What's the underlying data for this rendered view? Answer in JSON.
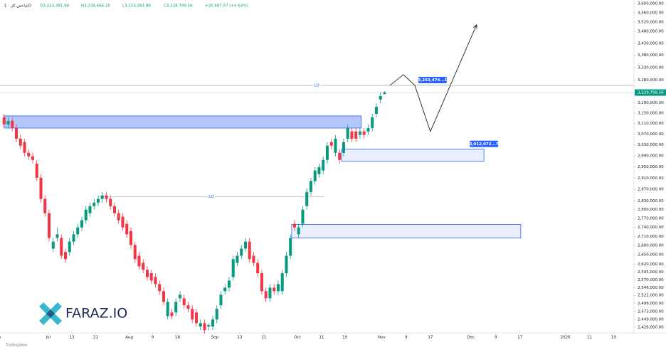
{
  "chart_data": {
    "type": "candlestick",
    "header": {
      "symbol": "شاخص کل · 1D",
      "open": "O3,223,391.98",
      "high": "H3,234,666.25",
      "low": "L3,223,391.98",
      "close": "C3,229,799.56",
      "change": "+20,487.57 (+0.64%)"
    },
    "up_color": "#089981",
    "down_color": "#f23645",
    "open": [
      3134000,
      3107000,
      3120000,
      3093000,
      3053000,
      3040000,
      3001000,
      2988000,
      2962000,
      2911000,
      2837000,
      2788000,
      2670000,
      2705000,
      2705000,
      2659000,
      2659000,
      2693000,
      2717000,
      2740000,
      2764000,
      2788000,
      2812000,
      2824000,
      2837000,
      2849000,
      2837000,
      2812000,
      2788000,
      2776000,
      2752000,
      2728000,
      2682000,
      2647000,
      2624000,
      2602000,
      2591000,
      2579000,
      2557000,
      2535000,
      2459000,
      2470000,
      2470000,
      2513000,
      2513000,
      2492000,
      2481000,
      2470000,
      2428000,
      2438000,
      2428000,
      2428000,
      2449000,
      2492000,
      2535000,
      2546000,
      2579000,
      2624000,
      2647000,
      2670000,
      2693000,
      2647000,
      2624000,
      2591000,
      2535000,
      2513000,
      2546000,
      2535000,
      2535000,
      2591000,
      2647000,
      2752000,
      2717000,
      2752000,
      2812000,
      2861000,
      2899000,
      2924000,
      2937000,
      2975000,
      3040000,
      3001000,
      3001000,
      3001000,
      3053000,
      3080000,
      3080000,
      3067000,
      3080000,
      3080000,
      3093000,
      3147000,
      3202000,
      3223391.98
    ],
    "high": [
      3147000,
      3134000,
      3134000,
      3107000,
      3067000,
      3053000,
      3014000,
      3001000,
      2975000,
      2924000,
      2849000,
      2800000,
      2705000,
      2740000,
      2717000,
      2670000,
      2705000,
      2728000,
      2752000,
      2776000,
      2812000,
      2824000,
      2837000,
      2849000,
      2861000,
      2861000,
      2849000,
      2824000,
      2800000,
      2788000,
      2764000,
      2740000,
      2693000,
      2659000,
      2636000,
      2613000,
      2602000,
      2591000,
      2568000,
      2546000,
      2513000,
      2481000,
      2513000,
      2535000,
      2524000,
      2502000,
      2492000,
      2481000,
      2449000,
      2449000,
      2438000,
      2459000,
      2492000,
      2535000,
      2557000,
      2579000,
      2647000,
      2659000,
      2682000,
      2705000,
      2705000,
      2659000,
      2636000,
      2602000,
      2546000,
      2557000,
      2557000,
      2568000,
      2602000,
      2659000,
      2717000,
      2764000,
      2752000,
      2812000,
      2874000,
      2911000,
      2949000,
      2962000,
      2988000,
      3040000,
      3053000,
      3067000,
      3014000,
      3053000,
      3107000,
      3093000,
      3093000,
      3093000,
      3093000,
      3107000,
      3147000,
      3188000,
      3230000,
      3234666.25
    ],
    "low": [
      3093000,
      3093000,
      3080000,
      3040000,
      3014000,
      2988000,
      2975000,
      2962000,
      2899000,
      2824000,
      2776000,
      2693000,
      2659000,
      2693000,
      2636000,
      2624000,
      2647000,
      2682000,
      2705000,
      2728000,
      2752000,
      2776000,
      2800000,
      2812000,
      2824000,
      2824000,
      2800000,
      2776000,
      2752000,
      2728000,
      2705000,
      2670000,
      2624000,
      2602000,
      2591000,
      2568000,
      2557000,
      2546000,
      2524000,
      2492000,
      2449000,
      2449000,
      2459000,
      2502000,
      2481000,
      2470000,
      2438000,
      2428000,
      2417000,
      2407000,
      2417000,
      2417000,
      2438000,
      2481000,
      2524000,
      2535000,
      2568000,
      2613000,
      2636000,
      2659000,
      2624000,
      2613000,
      2579000,
      2524000,
      2502000,
      2502000,
      2524000,
      2524000,
      2524000,
      2579000,
      2636000,
      2728000,
      2705000,
      2740000,
      2800000,
      2849000,
      2886000,
      2911000,
      2924000,
      2962000,
      3014000,
      2988000,
      2962000,
      2988000,
      3040000,
      3040000,
      3040000,
      3053000,
      3053000,
      3067000,
      3080000,
      3134000,
      3188000,
      3223391.98
    ],
    "close": [
      3107000,
      3120000,
      3093000,
      3053000,
      3027000,
      3001000,
      2988000,
      2975000,
      2911000,
      2837000,
      2788000,
      2705000,
      2693000,
      2717000,
      2647000,
      2636000,
      2693000,
      2717000,
      2740000,
      2764000,
      2800000,
      2812000,
      2824000,
      2837000,
      2849000,
      2837000,
      2812000,
      2788000,
      2764000,
      2740000,
      2717000,
      2682000,
      2636000,
      2613000,
      2602000,
      2579000,
      2568000,
      2557000,
      2535000,
      2502000,
      2502000,
      2459000,
      2502000,
      2524000,
      2492000,
      2481000,
      2449000,
      2438000,
      2438000,
      2417000,
      2432000,
      2449000,
      2481000,
      2524000,
      2546000,
      2568000,
      2636000,
      2647000,
      2670000,
      2693000,
      2636000,
      2624000,
      2591000,
      2535000,
      2513000,
      2546000,
      2535000,
      2557000,
      2591000,
      2647000,
      2705000,
      2740000,
      2740000,
      2800000,
      2861000,
      2899000,
      2937000,
      2949000,
      2975000,
      3027000,
      3027000,
      3053000,
      2975000,
      3040000,
      3093000,
      3053000,
      3053000,
      3080000,
      3067000,
      3093000,
      3134000,
      3174000,
      3216000,
      3229799.56
    ],
    "last_price": {
      "value": 3229799.56,
      "label": "3,229,799.56"
    },
    "zones": [
      {
        "start": 0,
        "end": 87.3,
        "top": 3139000,
        "bottom": 3093000,
        "color": "#2962ff"
      },
      {
        "start": 82.5,
        "end": 117.3,
        "top": 3014000,
        "bottom": 2970000,
        "color": "#2962ff",
        "label": "3,012,072...7"
      },
      {
        "start": 70.3,
        "end": 126.3,
        "top": 2750000,
        "bottom": 2705000,
        "color": "#2962ff"
      }
    ],
    "levels": [
      {
        "label": "LQ",
        "value": 3258000,
        "start": -1,
        "end": 153.8
      },
      {
        "label": "LQ",
        "value": 2844000,
        "start": 23,
        "end": 78.3
      }
    ],
    "projection": {
      "x": [
        94.3,
        97.6,
        100.4,
        104.2,
        115.5
      ],
      "values": [
        3258000,
        3301000,
        3258000,
        3080000,
        3508000
      ],
      "label": "3,253,474...1",
      "color": "#222222"
    },
    "log_scale": true,
    "xlim": [
      -1,
      153.8
    ],
    "ylim": [
      2400000,
      3620000
    ],
    "xticks": [
      {
        "value": -1.5,
        "label": "Jun"
      },
      {
        "value": 10.8,
        "label": "Jul"
      },
      16.6,
      22.4,
      {
        "value": 30.6,
        "label": "Aug"
      },
      36.3,
      42.4,
      {
        "value": 51.5,
        "label": "Sep"
      },
      57.6,
      63.5,
      {
        "value": 71.7,
        "label": "Oct"
      },
      77.6,
      83.3,
      {
        "value": 92.3,
        "label": "Nov"
      },
      98.3,
      104.2,
      {
        "value": 114.1,
        "label": "Dec"
      },
      120.2,
      126.1,
      {
        "value": 137.2,
        "label": "2026"
      },
      143.1,
      149
    ],
    "xtick_labels": [
      null,
      null,
      "13",
      "21",
      null,
      "9",
      "18",
      null,
      "13",
      "21",
      null,
      "11",
      "19",
      null,
      "9",
      "17",
      null,
      "9",
      "17",
      null,
      "11",
      "19"
    ],
    "yticks": [
      {
        "value": 3600000,
        "label": "3,600,000.00"
      },
      {
        "value": 3560000,
        "label": "3,560,000.00"
      },
      {
        "value": 3520000,
        "label": "3,520,000.00"
      },
      {
        "value": 3480000,
        "label": "3,480,000.00"
      },
      {
        "value": 3430000,
        "label": "3,430,000.00"
      },
      {
        "value": 3380000,
        "label": "3,380,000.00"
      },
      {
        "value": 3330000,
        "label": "3,330,000.00"
      },
      {
        "value": 3280000,
        "label": "3,280,000.00"
      },
      {
        "value": 3190000,
        "label": "3,190,000.00"
      },
      {
        "value": 3150000,
        "label": "3,150,000.00"
      },
      {
        "value": 3110000,
        "label": "3,110,000.00"
      },
      {
        "value": 3070000,
        "label": "3,070,000.00"
      },
      {
        "value": 3030000,
        "label": "3,030,000.00"
      },
      {
        "value": 2990000,
        "label": "2,990,000.00"
      },
      {
        "value": 2950000,
        "label": "2,950,000.00"
      },
      {
        "value": 2910000,
        "label": "2,910,000.00"
      },
      {
        "value": 2870000,
        "label": "2,870,000.00"
      },
      {
        "value": 2830000,
        "label": "2,830,000.00"
      },
      {
        "value": 2800000,
        "label": "2,800,000.00"
      },
      {
        "value": 2770000,
        "label": "2,770,000.00"
      },
      {
        "value": 2740000,
        "label": "2,740,000.00"
      },
      {
        "value": 2710000,
        "label": "2,710,000.00"
      },
      {
        "value": 2680000,
        "label": "2,680,000.00"
      },
      {
        "value": 2650000,
        "label": "2,650,000.00"
      },
      {
        "value": 2620000,
        "label": "2,620,000.00"
      },
      {
        "value": 2595000,
        "label": "2,595,000.00"
      },
      {
        "value": 2570000,
        "label": "2,570,000.00"
      },
      {
        "value": 2546000,
        "label": "2,546,000.00"
      },
      {
        "value": 2522000,
        "label": "2,522,000.00"
      },
      {
        "value": 2498000,
        "label": "2,498,000.00"
      },
      {
        "value": 2473000,
        "label": "2,473,000.00"
      },
      {
        "value": 2449000,
        "label": "2,449,000.00"
      },
      {
        "value": 2426000,
        "label": "2,426,000.00"
      }
    ],
    "watermark": "FARAZ.IO",
    "credit": "TradingView"
  }
}
